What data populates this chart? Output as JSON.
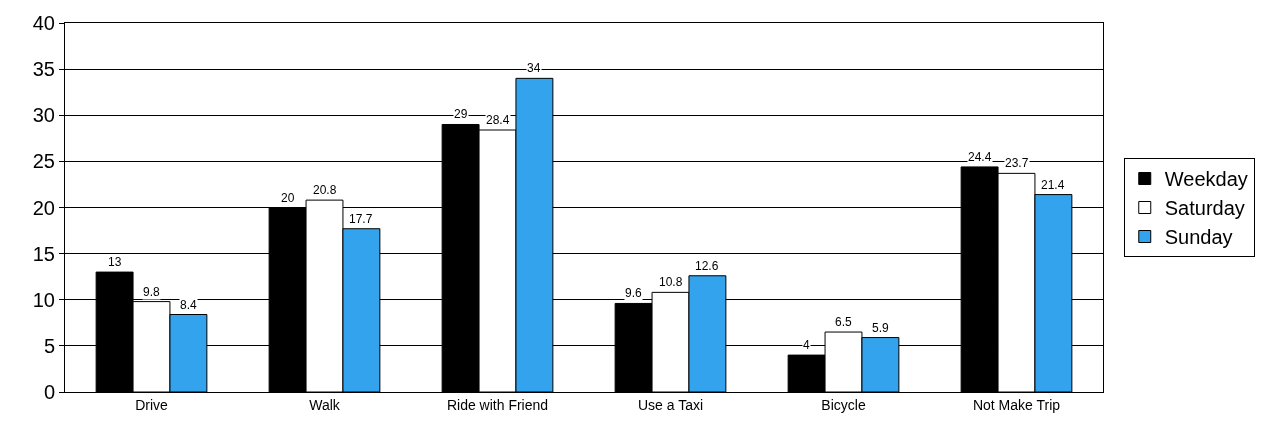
{
  "chart_data": {
    "type": "bar",
    "categories": [
      "Drive",
      "Walk",
      "Ride with Friend",
      "Use a Taxi",
      "Bicycle",
      "Not Make Trip"
    ],
    "series": [
      {
        "name": "Weekday",
        "color": "#000000",
        "values": [
          13,
          20,
          29,
          9.6,
          4,
          24.4
        ]
      },
      {
        "name": "Saturday",
        "color": "#ffffff",
        "values": [
          9.8,
          20.8,
          28.4,
          10.8,
          6.5,
          23.7
        ]
      },
      {
        "name": "Sunday",
        "color": "#33a3ee",
        "values": [
          8.4,
          17.7,
          34,
          12.6,
          5.9,
          21.4
        ]
      }
    ],
    "ylim": [
      0,
      40
    ],
    "yticks": [
      0,
      5,
      10,
      15,
      20,
      25,
      30,
      35,
      40
    ],
    "grid": "y",
    "legend": "right",
    "data_labels": true
  }
}
